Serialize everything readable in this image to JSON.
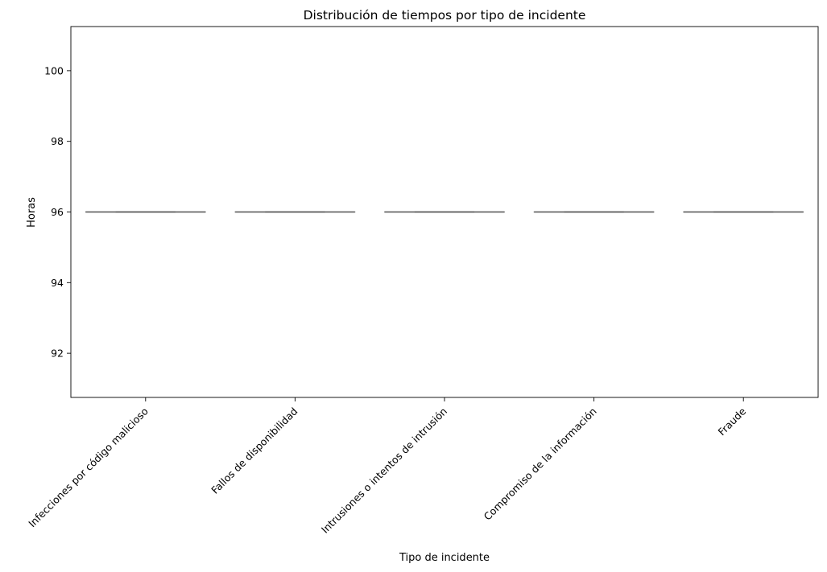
{
  "chart_data": {
    "type": "box",
    "title": "Distribución de tiempos por tipo de incidente",
    "xlabel": "Tipo de incidente",
    "ylabel": "Horas",
    "categories": [
      "Infecciones por código malicioso",
      "Fallos de disponibilidad",
      "Intrusiones o intentos de intrusión",
      "Compromiso de la información",
      "Fraude"
    ],
    "boxes": [
      {
        "category": "Infecciones por código malicioso",
        "min": 96,
        "q1": 96,
        "median": 96,
        "q3": 96,
        "max": 96
      },
      {
        "category": "Fallos de disponibilidad",
        "min": 96,
        "q1": 96,
        "median": 96,
        "q3": 96,
        "max": 96
      },
      {
        "category": "Intrusiones o intentos de intrusión",
        "min": 96,
        "q1": 96,
        "median": 96,
        "q3": 96,
        "max": 96
      },
      {
        "category": "Compromiso de la información",
        "min": 96,
        "q1": 96,
        "median": 96,
        "q3": 96,
        "max": 96
      },
      {
        "category": "Fraude",
        "min": 96,
        "q1": 96,
        "median": 96,
        "q3": 96,
        "max": 96
      }
    ],
    "yticks": [
      92,
      94,
      96,
      98,
      100
    ],
    "ylim": [
      90.75,
      101.25
    ],
    "grid": false,
    "colors": {
      "box_line": "#5a5a5a",
      "axes": "#000000",
      "background": "#ffffff"
    }
  }
}
